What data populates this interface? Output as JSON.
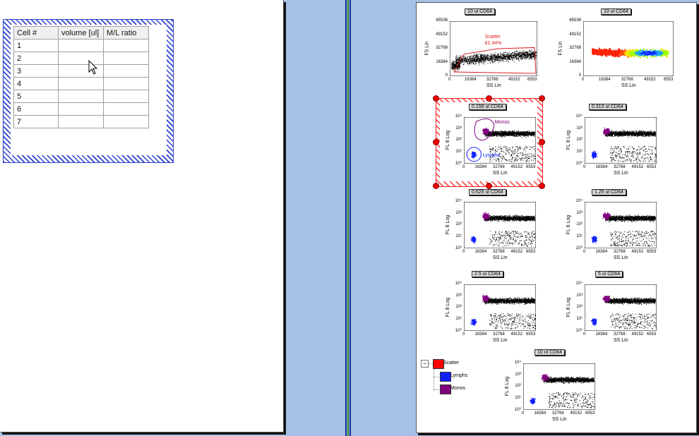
{
  "left_table": {
    "headers": [
      "Cell #",
      "volume [ul]",
      "M/L ratio"
    ],
    "rows": [
      [
        "1",
        "",
        ""
      ],
      [
        "2",
        "",
        ""
      ],
      [
        "3",
        "",
        ""
      ],
      [
        "4",
        "",
        ""
      ],
      [
        "5",
        "",
        ""
      ],
      [
        "6",
        "",
        ""
      ],
      [
        "7",
        "",
        ""
      ]
    ]
  },
  "plots": [
    {
      "id": "p1",
      "title": "10  ul CD64",
      "ylabel": "FS Lin",
      "xlabel": "SS Lin",
      "yticks": [
        "65536",
        "49152",
        "32768",
        "16384",
        "0"
      ],
      "xticks": [
        "0",
        "16384",
        "32768",
        "49152",
        "6553"
      ],
      "kind": "scatter-lin",
      "gate_label": "Scatter",
      "gate_pct": "81.44%"
    },
    {
      "id": "p2",
      "title": "10  ul CD64",
      "ylabel": "FS Lin",
      "xlabel": "SS Lin",
      "yticks": [
        "65536",
        "49152",
        "32768",
        "16384",
        "0"
      ],
      "xticks": [
        "0",
        "16384",
        "32768",
        "49152",
        "6553"
      ],
      "kind": "density"
    },
    {
      "id": "p3",
      "title": "0.156  ul CD64",
      "ylabel": "FL 8 Log",
      "xlabel": "SS Lin",
      "yticks": [
        "10⁴",
        "10³",
        "10²",
        "10¹",
        "10⁰"
      ],
      "xticks": [
        "0",
        "16384",
        "32768",
        "49152",
        "6553"
      ],
      "kind": "log-gated",
      "monos_label": "Monos",
      "lymphs_label": "Lymphs"
    },
    {
      "id": "p4",
      "title": "0.313  ul CD64",
      "ylabel": "FL 8 Log",
      "xlabel": "SS Lin",
      "yticks": [
        "10⁴",
        "10³",
        "10²",
        "10¹",
        "10⁰"
      ],
      "xticks": [
        "0",
        "16384",
        "32768",
        "49152",
        "6553"
      ],
      "kind": "log"
    },
    {
      "id": "p5",
      "title": "0.625  ul CD64",
      "ylabel": "FL 8 Log",
      "xlabel": "SS Lin",
      "yticks": [
        "10⁴",
        "10³",
        "10²",
        "10¹",
        "10⁰"
      ],
      "xticks": [
        "0",
        "16384",
        "32768",
        "49152",
        "6553"
      ],
      "kind": "log"
    },
    {
      "id": "p6",
      "title": "1.25  ul CD64",
      "ylabel": "FL 8 Log",
      "xlabel": "SS Lin",
      "yticks": [
        "10⁴",
        "10³",
        "10²",
        "10¹",
        "10⁰"
      ],
      "xticks": [
        "0",
        "16384",
        "32768",
        "49152",
        "6553"
      ],
      "kind": "log"
    },
    {
      "id": "p7",
      "title": "2.5  ul CD64",
      "ylabel": "FL 8 Log",
      "xlabel": "SS Lin",
      "yticks": [
        "10⁴",
        "10³",
        "10²",
        "10¹",
        "10⁰"
      ],
      "xticks": [
        "0",
        "16384",
        "32768",
        "49152",
        "6553"
      ],
      "kind": "log"
    },
    {
      "id": "p8",
      "title": "5  ul CD64",
      "ylabel": "FL 8 Log",
      "xlabel": "SS Lin",
      "yticks": [
        "10⁴",
        "10³",
        "10²",
        "10¹",
        "10⁰"
      ],
      "xticks": [
        "0",
        "16384",
        "32768",
        "49152",
        "6553"
      ],
      "kind": "log"
    },
    {
      "id": "p9",
      "title": "10  ul CD64",
      "ylabel": "FL 8 Log",
      "xlabel": "SS Lin",
      "yticks": [
        "10⁴",
        "10³",
        "10²",
        "10¹",
        "10⁰"
      ],
      "xticks": [
        "0",
        "16384",
        "32768",
        "49152",
        "6553"
      ],
      "kind": "log"
    }
  ],
  "legend": {
    "items": [
      {
        "label": "Scatter",
        "color": "#ff0000"
      },
      {
        "label": "Lymphs",
        "color": "#1020ff"
      },
      {
        "label": "Monos",
        "color": "#800080"
      }
    ],
    "collapse_symbol": "−"
  },
  "colors": {
    "background": "#a4c2e6",
    "selection_hatch": "#2a3fd0",
    "selected_plot_hatch": "#ff2020",
    "gate_red": "#e02020",
    "lymphs_blue": "#1020ff",
    "monos_purple": "#800080"
  }
}
